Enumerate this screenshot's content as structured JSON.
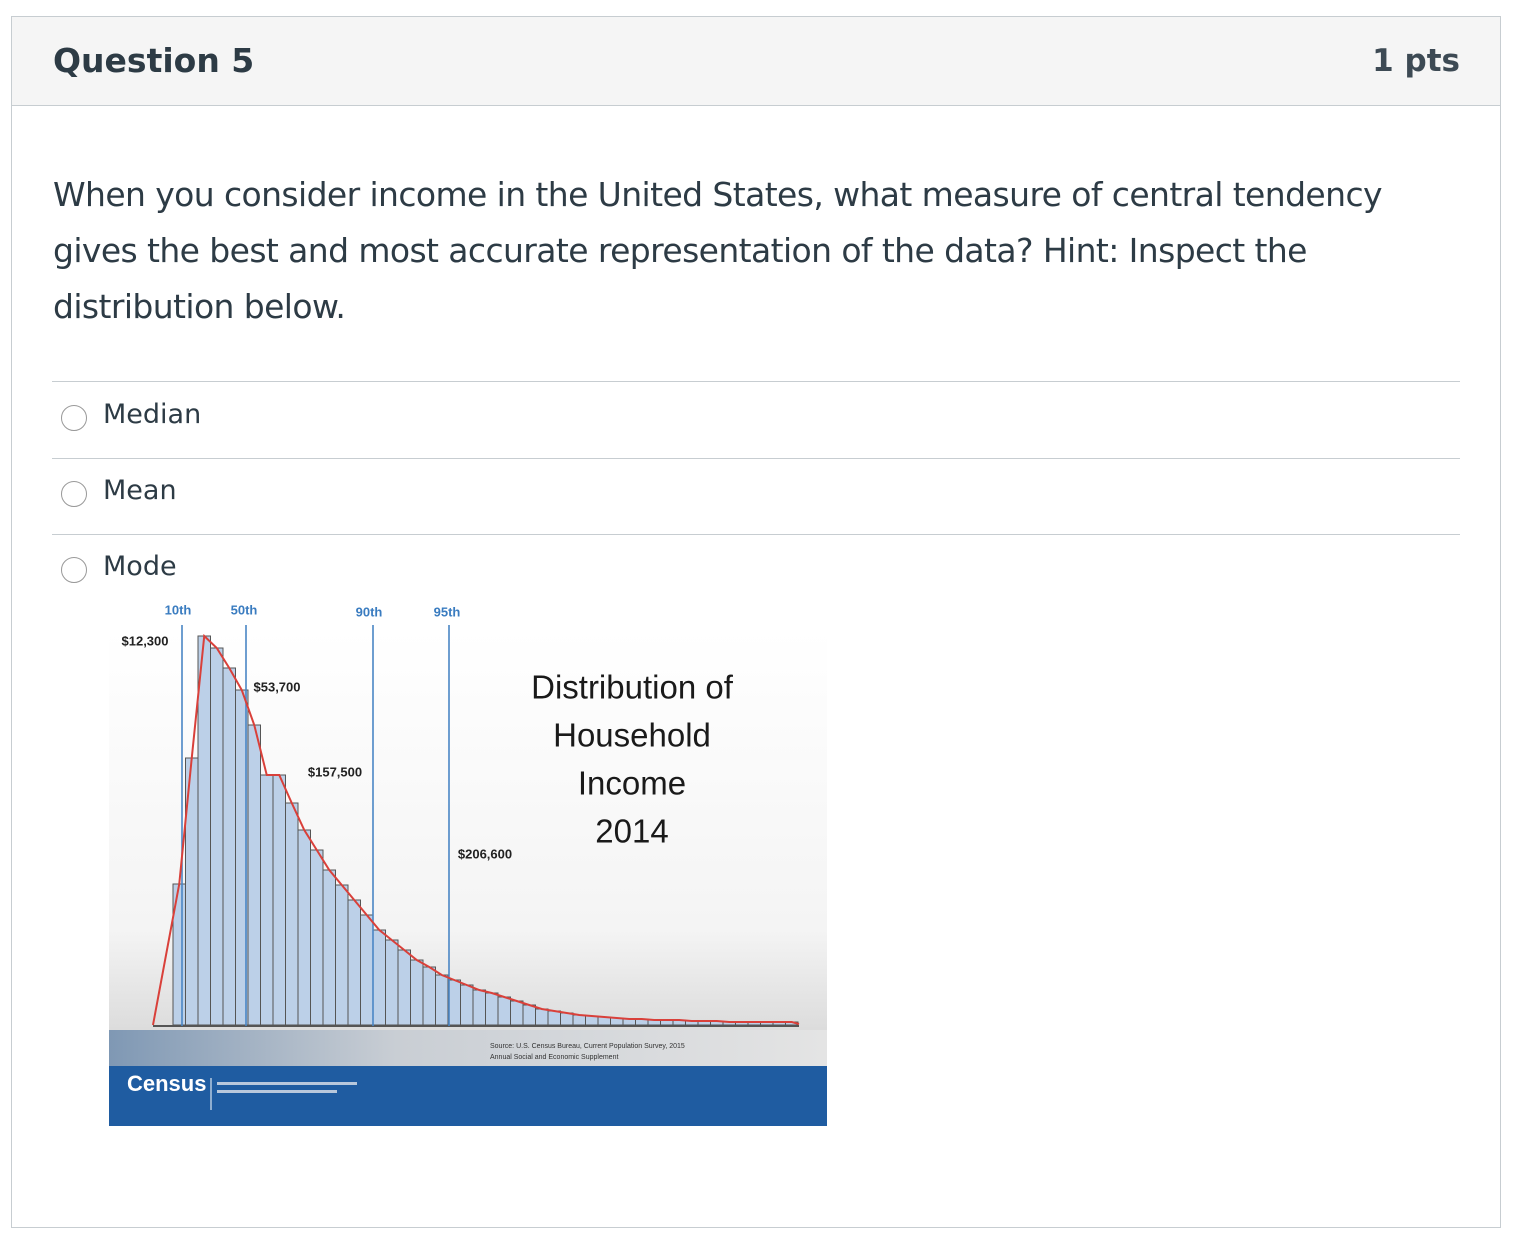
{
  "header": {
    "title": "Question 5",
    "points": "1 pts"
  },
  "question": "When you consider income in the United States, what measure of central tendency gives the best and most accurate representation of the data? Hint: Inspect the distribution below.",
  "options": [
    "Median",
    "Mean",
    "Mode"
  ],
  "figure": {
    "title_lines": [
      "Distribution of",
      "Household",
      "Income",
      "2014"
    ],
    "percentiles": [
      {
        "label": "10th",
        "value": "$12,300"
      },
      {
        "label": "50th",
        "value": "$53,700"
      },
      {
        "label": "90th",
        "value": "$157,500"
      },
      {
        "label": "95th",
        "value": "$206,600"
      }
    ],
    "bars": [
      1.41,
      2.67,
      3.89,
      3.77,
      3.57,
      3.35,
      3.0,
      2.5,
      2.5,
      2.22,
      1.95,
      1.75,
      1.55,
      1.4,
      1.25,
      1.1,
      0.95,
      0.85,
      0.75,
      0.65,
      0.58,
      0.5,
      0.45,
      0.4,
      0.35,
      0.32,
      0.28,
      0.24,
      0.2,
      0.16,
      0.14,
      0.12,
      0.1,
      0.09,
      0.08,
      0.07,
      0.06,
      0.06,
      0.05,
      0.05,
      0.05,
      0.04,
      0.04,
      0.04,
      0.03,
      0.03,
      0.03,
      0.03,
      0.03,
      0.03
    ],
    "source_lines": [
      "Source: U.S. Census Bureau, Current Population Survey, 2015",
      "Annual Social and Economic Supplement"
    ],
    "logo": "Census"
  }
}
